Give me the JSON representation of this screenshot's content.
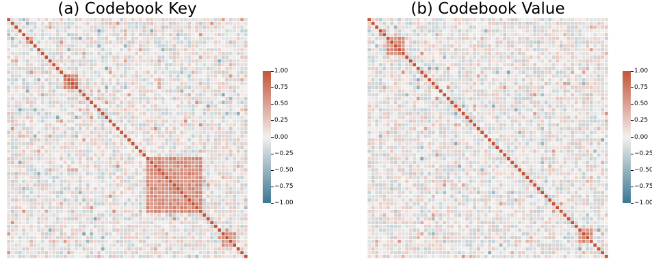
{
  "chart_data": [
    {
      "type": "heatmap",
      "title": "(a) Codebook Key",
      "size": 64,
      "colorbar": {
        "min": -1.0,
        "max": 1.0,
        "ticks": [
          "1.00",
          "0.75",
          "0.50",
          "0.25",
          "0.00",
          "−0.25",
          "−0.50",
          "−0.75",
          "−1.00"
        ]
      },
      "colors": {
        "positive": "#c2543a",
        "neutral": "#f2f0ee",
        "negative": "#3d7791"
      },
      "diagonal": 1.0,
      "blocks": [
        {
          "from": 15,
          "to": 18,
          "value": 0.72
        },
        {
          "from": 37,
          "to": 51,
          "value": 0.62
        },
        {
          "from": 57,
          "to": 60,
          "value": 0.55
        }
      ],
      "seed": 7
    },
    {
      "type": "heatmap",
      "title": "(b) Codebook Value",
      "size": 64,
      "colorbar": {
        "min": -1.0,
        "max": 1.0,
        "ticks": [
          "1.00",
          "0.75",
          "0.50",
          "0.25",
          "0.00",
          "−0.25",
          "−0.50",
          "−0.75",
          "−1.00"
        ]
      },
      "colors": {
        "positive": "#c2543a",
        "neutral": "#f2f0ee",
        "negative": "#3d7791"
      },
      "diagonal": 1.0,
      "blocks": [
        {
          "from": 5,
          "to": 9,
          "value": 0.65
        },
        {
          "from": 56,
          "to": 59,
          "value": 0.6
        }
      ],
      "seed": 19
    }
  ]
}
